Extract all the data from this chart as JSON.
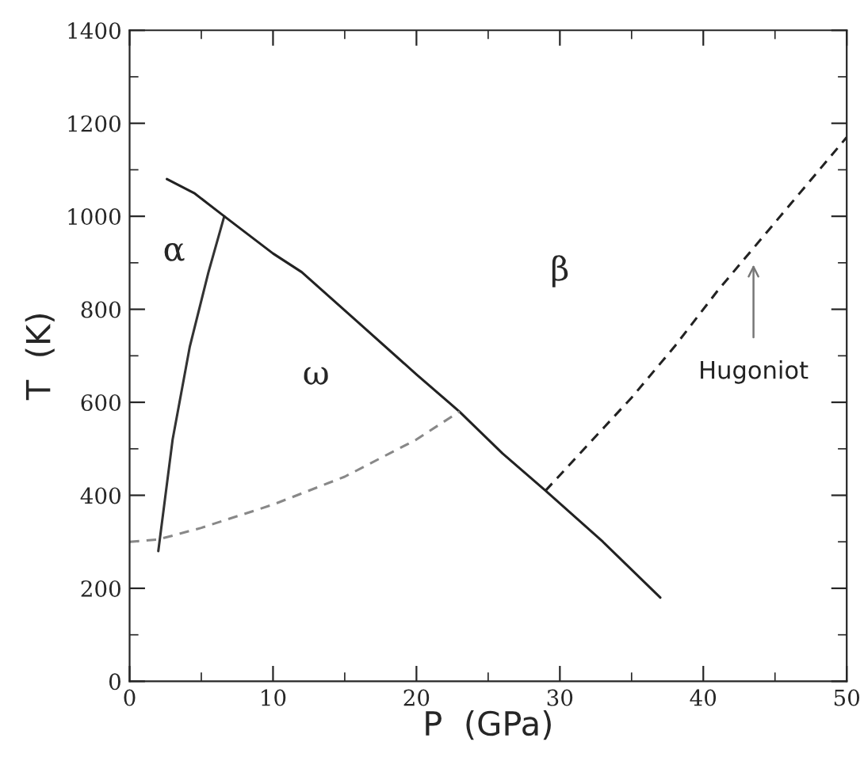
{
  "chart_data": {
    "type": "line",
    "xlabel": "P  (GPa)",
    "ylabel": "T  (K)",
    "xlim": [
      0,
      50
    ],
    "xticks": [
      0,
      10,
      20,
      30,
      40,
      50
    ],
    "ylim": [
      0,
      1400
    ],
    "yticks": [
      0,
      200,
      400,
      600,
      800,
      1000,
      1200,
      1400
    ],
    "grid": false,
    "legend": false,
    "marker": "none",
    "series": [
      {
        "color": "#333333",
        "line_style": "solid",
        "x": [
          2.0,
          3.0,
          4.2,
          5.5,
          6.6
        ],
        "values": [
          280,
          520,
          720,
          880,
          1000
        ]
      },
      {
        "color": "#222222",
        "line_style": "solid",
        "x": [
          2.6,
          4.5,
          6.6,
          10,
          12,
          16,
          20,
          23,
          26,
          29,
          33,
          37
        ],
        "values": [
          1080,
          1050,
          1000,
          920,
          880,
          770,
          660,
          580,
          490,
          410,
          300,
          180
        ]
      },
      {
        "color": "#888888",
        "line_style": "dashed",
        "x": [
          0,
          2,
          5,
          10,
          15,
          20,
          23
        ],
        "values": [
          300,
          305,
          330,
          380,
          440,
          520,
          580
        ]
      },
      {
        "color": "#222222",
        "line_style": "dashed",
        "x": [
          29,
          32,
          35,
          38,
          41,
          44,
          47,
          50
        ],
        "values": [
          410,
          510,
          610,
          720,
          840,
          950,
          1060,
          1170
        ]
      }
    ],
    "annotations": [
      "α",
      "ω",
      "β",
      "Hugoniot"
    ]
  }
}
